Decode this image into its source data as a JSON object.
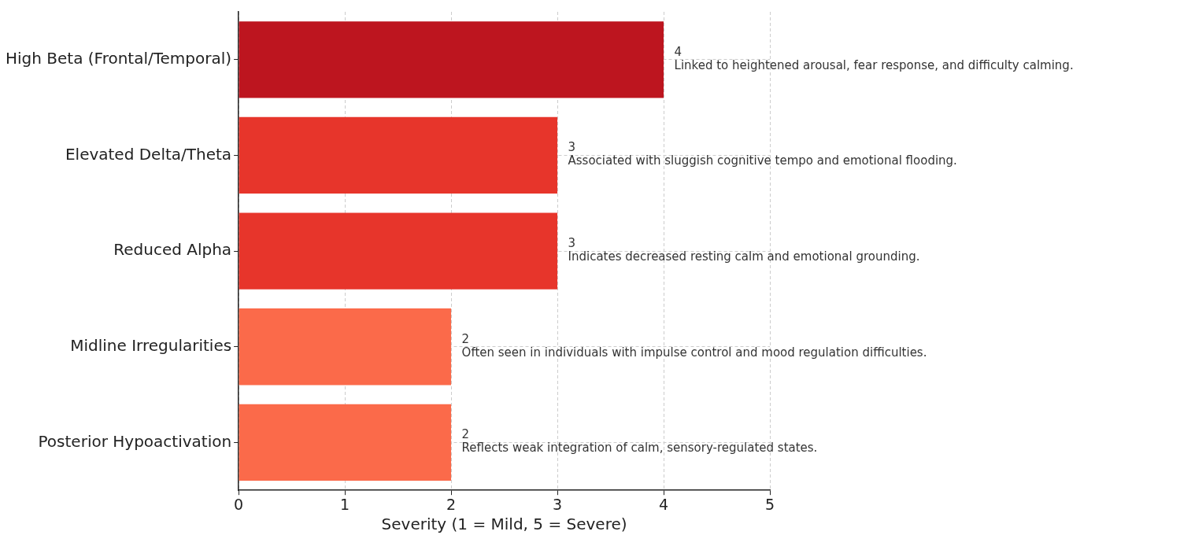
{
  "chart_data": {
    "type": "bar",
    "orientation": "horizontal",
    "xlabel": "Severity (1 = Mild, 5 = Severe)",
    "categories": [
      "High Beta (Frontal/Temporal)",
      "Elevated Delta/Theta",
      "Reduced Alpha",
      "Midline Irregularities",
      "Posterior Hypoactivation"
    ],
    "values": [
      4,
      3,
      3,
      2,
      2
    ],
    "colors": [
      "#bd151f",
      "#e7352b",
      "#e7352b",
      "#fb6a4a",
      "#fb6a4a"
    ],
    "xlim": [
      0,
      5
    ],
    "xticks": [
      0,
      1,
      2,
      3,
      4,
      5
    ],
    "grid": true,
    "data_labels": true,
    "annotations": [
      {
        "text": "Linked to heightened arousal, fear response, and difficulty calming.",
        "x": 4,
        "y": "High Beta (Frontal/Temporal)"
      },
      {
        "text": "Associated with sluggish cognitive tempo and emotional flooding.",
        "x": 3,
        "y": "Elevated Delta/Theta"
      },
      {
        "text": "Indicates decreased resting calm and emotional grounding.",
        "x": 3,
        "y": "Reduced Alpha"
      },
      {
        "text": "Often seen in individuals with impulse control and mood regulation difficulties.",
        "x": 2,
        "y": "Midline Irregularities"
      },
      {
        "text": "Reflects weak integration of calm, sensory-regulated states.",
        "x": 2,
        "y": "Posterior Hypoactivation"
      }
    ]
  }
}
